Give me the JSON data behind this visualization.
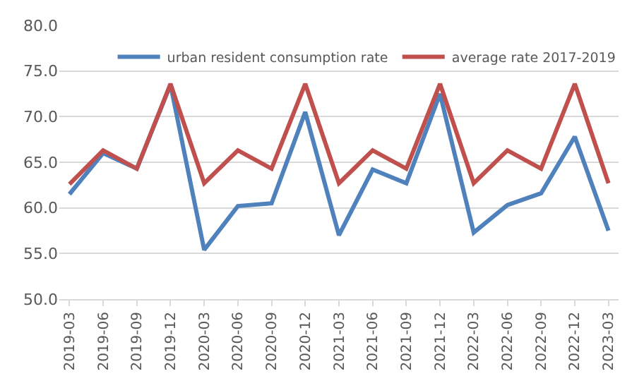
{
  "chart_data": {
    "type": "line",
    "categories": [
      "2019-03",
      "2019-06",
      "2019-09",
      "2019-12",
      "2020-03",
      "2020-06",
      "2020-09",
      "2020-12",
      "2021-03",
      "2021-06",
      "2021-09",
      "2021-12",
      "2022-03",
      "2022-06",
      "2022-09",
      "2022-12",
      "2023-03"
    ],
    "series": [
      {
        "name": "urban resident consumption rate",
        "color": "#4f81bd",
        "values": [
          61.5,
          66.0,
          64.3,
          73.5,
          55.4,
          60.2,
          60.5,
          70.5,
          57.0,
          64.2,
          62.7,
          72.5,
          57.3,
          60.3,
          61.6,
          67.8,
          57.5
        ]
      },
      {
        "name": "average rate 2017-2019",
        "color": "#c0504d",
        "values": [
          62.6,
          66.3,
          64.3,
          73.6,
          62.7,
          66.3,
          64.3,
          73.6,
          62.7,
          66.3,
          64.3,
          73.6,
          62.7,
          66.3,
          64.3,
          73.6,
          62.7
        ]
      }
    ],
    "ylim": [
      50,
      80
    ],
    "yticks": [
      {
        "value": 50,
        "label": "50.0"
      },
      {
        "value": 55,
        "label": "55.0"
      },
      {
        "value": 60,
        "label": "60.0"
      },
      {
        "value": 65,
        "label": "65.0"
      },
      {
        "value": 70,
        "label": "70.0"
      },
      {
        "value": 75,
        "label": "75.0"
      },
      {
        "value": 80,
        "label": "80.0"
      }
    ],
    "grid": "y",
    "legend": "top",
    "marker": "none",
    "line_style": "solid"
  }
}
